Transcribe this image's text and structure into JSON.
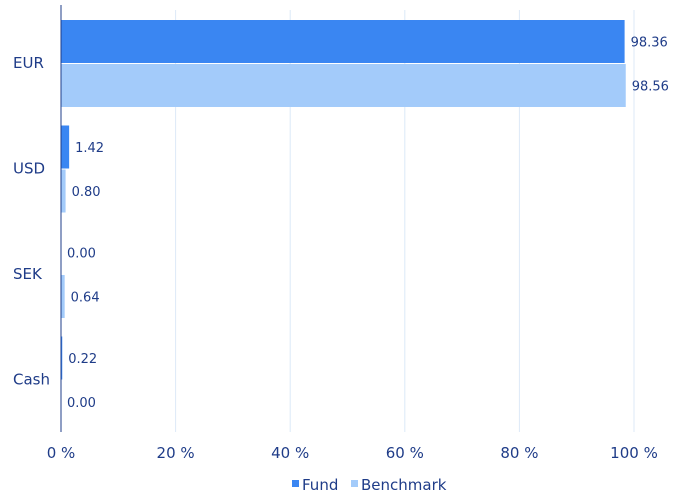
{
  "chart_data": {
    "type": "bar",
    "orientation": "horizontal",
    "categories": [
      "EUR",
      "USD",
      "SEK",
      "Cash"
    ],
    "series": [
      {
        "name": "Fund",
        "values": [
          98.36,
          1.42,
          0.0,
          0.22
        ],
        "color": "#3a86f2"
      },
      {
        "name": "Benchmark",
        "values": [
          98.56,
          0.8,
          0.64,
          0.0
        ],
        "color": "#a3cbfa"
      }
    ],
    "data_labels": [
      [
        "98.36",
        "1.42",
        "0.00",
        "0.22"
      ],
      [
        "98.56",
        "0.80",
        "0.64",
        "0.00"
      ]
    ],
    "xlim": [
      0,
      100
    ],
    "x_ticks": [
      "0 %",
      "20 %",
      "40 %",
      "60 %",
      "80 %",
      "100 %"
    ],
    "grid": true,
    "legend_position": "bottom-center",
    "legend": {
      "fund_label": "Fund",
      "benchmark_label": "Benchmark"
    },
    "colors": {
      "axis": "#1f3c88",
      "grid": "#dce9f7",
      "text": "#1f3c88"
    }
  }
}
